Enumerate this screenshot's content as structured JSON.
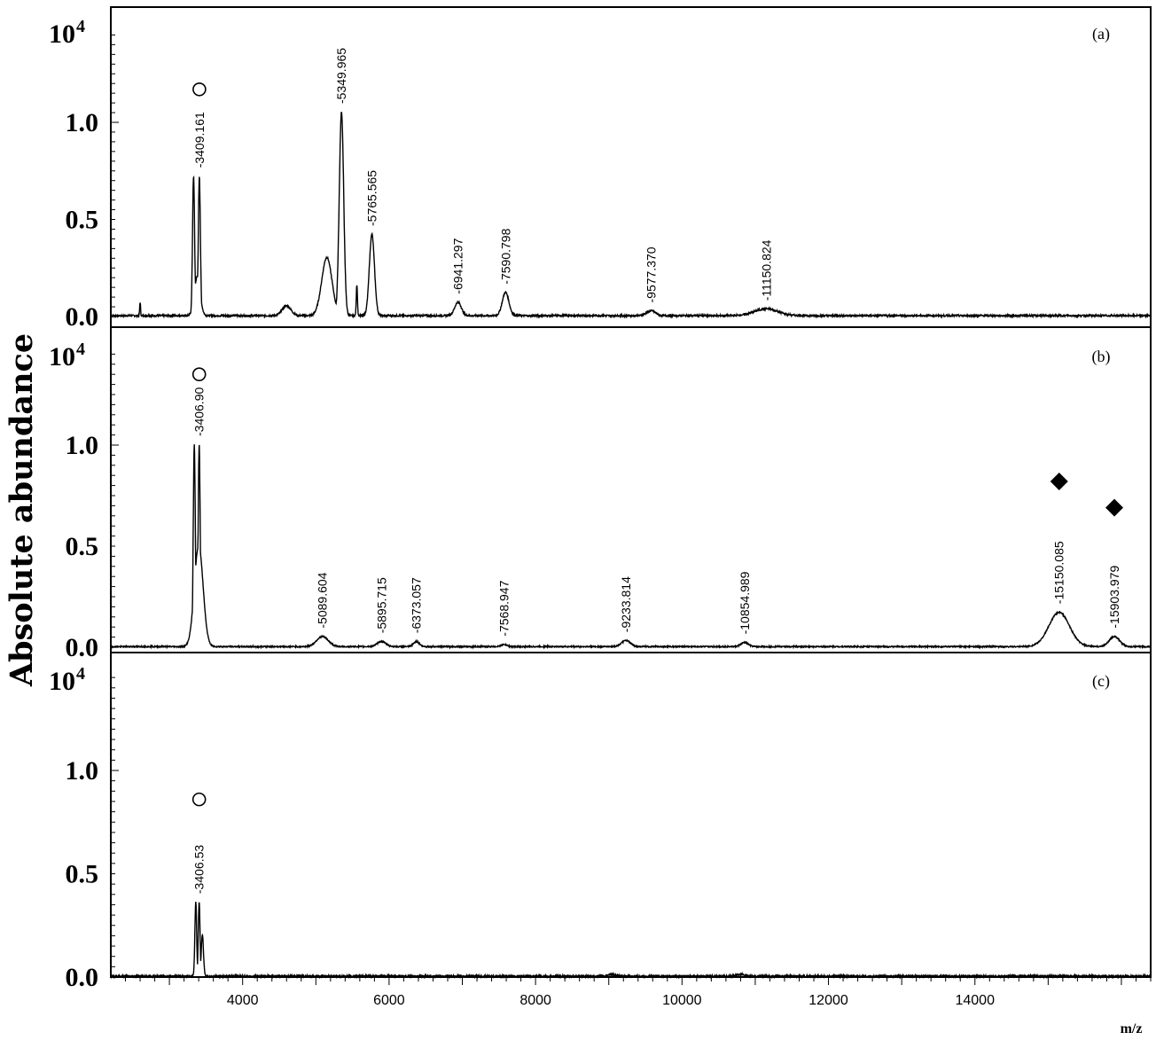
{
  "chart_data": {
    "type": "line",
    "ylabel": "Absolute abundance",
    "xlabel": "m/z",
    "y_multiplier": {
      "base": "10",
      "exponent": "4"
    },
    "xlim": [
      2200,
      16400
    ],
    "ylim": [
      0,
      1.3
    ],
    "x_ticks": [
      "4000",
      "6000",
      "8000",
      "10000",
      "12000",
      "14000"
    ],
    "x_tick_values": [
      4000,
      6000,
      8000,
      10000,
      12000,
      14000
    ],
    "y_ticks": [
      "0.0",
      "0.5",
      "1.0"
    ],
    "y_tick_values": [
      0,
      0.5,
      1.0
    ],
    "panels": [
      {
        "label": "(a)",
        "peaks": [
          {
            "mz": 2600,
            "height": 0.07,
            "width": 6,
            "label": ""
          },
          {
            "mz": 3330,
            "height": 0.72,
            "width": 14,
            "label": ""
          },
          {
            "mz": 3409.161,
            "height": 0.72,
            "width": 14,
            "label": "-3409.161",
            "marker": "circle",
            "marker_y": 1.17
          },
          {
            "mz": 3380,
            "height": 0.2,
            "width": 40,
            "label": ""
          },
          {
            "mz": 4600,
            "height": 0.05,
            "width": 60,
            "label": ""
          },
          {
            "mz": 5150,
            "height": 0.3,
            "width": 70,
            "label": ""
          },
          {
            "mz": 5349.965,
            "height": 1.05,
            "width": 30,
            "label": "-5349.965"
          },
          {
            "mz": 5560,
            "height": 0.16,
            "width": 8,
            "label": ""
          },
          {
            "mz": 5765.565,
            "height": 0.42,
            "width": 35,
            "label": "-5765.565"
          },
          {
            "mz": 6941.297,
            "height": 0.07,
            "width": 45,
            "label": "-6941.297"
          },
          {
            "mz": 7590.798,
            "height": 0.12,
            "width": 45,
            "label": "-7590.798"
          },
          {
            "mz": 9577.37,
            "height": 0.025,
            "width": 60,
            "label": "-9577.370"
          },
          {
            "mz": 11150.824,
            "height": 0.035,
            "width": 160,
            "label": "-11150.824"
          }
        ]
      },
      {
        "label": "(b)",
        "peaks": [
          {
            "mz": 3340,
            "height": 1.0,
            "width": 14,
            "label": ""
          },
          {
            "mz": 3406.9,
            "height": 1.0,
            "width": 14,
            "label": "-3406.90",
            "marker": "circle",
            "marker_y": 1.35
          },
          {
            "mz": 3400,
            "height": 0.5,
            "width": 60,
            "label": ""
          },
          {
            "mz": 5089.604,
            "height": 0.05,
            "width": 80,
            "label": "-5089.604"
          },
          {
            "mz": 5895.715,
            "height": 0.025,
            "width": 60,
            "label": "-5895.715"
          },
          {
            "mz": 6373.057,
            "height": 0.025,
            "width": 40,
            "label": "-6373.057"
          },
          {
            "mz": 7568.947,
            "height": 0.01,
            "width": 40,
            "label": "-7568.947"
          },
          {
            "mz": 9233.814,
            "height": 0.03,
            "width": 60,
            "label": "-9233.814"
          },
          {
            "mz": 10854.989,
            "height": 0.02,
            "width": 50,
            "label": "-10854.989"
          },
          {
            "mz": 15150.085,
            "height": 0.17,
            "width": 140,
            "label": "-15150.085",
            "marker": "diamond",
            "marker_y": 0.82
          },
          {
            "mz": 15903.979,
            "height": 0.05,
            "width": 70,
            "label": "-15903.979",
            "marker": "diamond",
            "marker_y": 0.69
          }
        ]
      },
      {
        "label": "(c)",
        "peaks": [
          {
            "mz": 3360,
            "height": 0.36,
            "width": 12,
            "label": ""
          },
          {
            "mz": 3406.53,
            "height": 0.36,
            "width": 12,
            "label": "-3406.53",
            "marker": "circle",
            "marker_y": 0.86
          },
          {
            "mz": 3450,
            "height": 0.2,
            "width": 15,
            "label": ""
          },
          {
            "mz": 9050,
            "height": 0.008,
            "width": 60,
            "label": ""
          },
          {
            "mz": 10800,
            "height": 0.008,
            "width": 60,
            "label": ""
          }
        ]
      }
    ]
  }
}
